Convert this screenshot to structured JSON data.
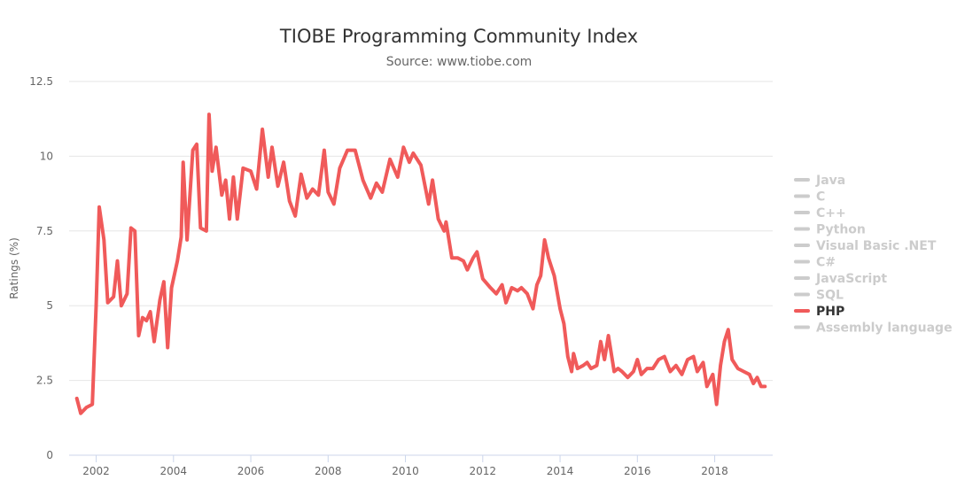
{
  "chart_data": {
    "type": "line",
    "title": "TIOBE Programming Community Index",
    "subtitle": "Source: www.tiobe.com",
    "xlabel": "",
    "ylabel": "Ratings (%)",
    "ylim": [
      0,
      12.5
    ],
    "y_ticks": [
      0,
      2.5,
      5,
      7.5,
      10,
      12.5
    ],
    "y_tick_labels": [
      "0",
      "2.5",
      "5",
      "7.5",
      "10",
      "12.5"
    ],
    "xlim": [
      2001.3,
      2019.5
    ],
    "x_ticks": [
      2002,
      2004,
      2006,
      2008,
      2010,
      2012,
      2014,
      2016,
      2018
    ],
    "x_tick_labels": [
      "2002",
      "2004",
      "2006",
      "2008",
      "2010",
      "2012",
      "2014",
      "2016",
      "2018"
    ],
    "grid": "horizontal",
    "legend_position": "right",
    "legend": [
      {
        "name": "Java",
        "visible": false
      },
      {
        "name": "C",
        "visible": false
      },
      {
        "name": "C++",
        "visible": false
      },
      {
        "name": "Python",
        "visible": false
      },
      {
        "name": "Visual Basic .NET",
        "visible": false
      },
      {
        "name": "C#",
        "visible": false
      },
      {
        "name": "JavaScript",
        "visible": false
      },
      {
        "name": "SQL",
        "visible": false
      },
      {
        "name": "PHP",
        "visible": true
      },
      {
        "name": "Assembly language",
        "visible": false
      }
    ],
    "series": [
      {
        "name": "PHP",
        "color": "#f05a5a",
        "points": [
          [
            2001.5,
            1.9
          ],
          [
            2001.6,
            1.4
          ],
          [
            2001.75,
            1.6
          ],
          [
            2001.9,
            1.7
          ],
          [
            2002.0,
            5.0
          ],
          [
            2002.08,
            8.3
          ],
          [
            2002.2,
            7.2
          ],
          [
            2002.3,
            5.1
          ],
          [
            2002.45,
            5.3
          ],
          [
            2002.55,
            6.5
          ],
          [
            2002.65,
            5.0
          ],
          [
            2002.8,
            5.4
          ],
          [
            2002.9,
            7.6
          ],
          [
            2003.0,
            7.5
          ],
          [
            2003.1,
            4.0
          ],
          [
            2003.2,
            4.6
          ],
          [
            2003.3,
            4.5
          ],
          [
            2003.4,
            4.8
          ],
          [
            2003.5,
            3.8
          ],
          [
            2003.65,
            5.2
          ],
          [
            2003.75,
            5.8
          ],
          [
            2003.85,
            3.6
          ],
          [
            2003.95,
            5.6
          ],
          [
            2004.1,
            6.5
          ],
          [
            2004.2,
            7.3
          ],
          [
            2004.25,
            9.8
          ],
          [
            2004.35,
            7.2
          ],
          [
            2004.5,
            10.2
          ],
          [
            2004.6,
            10.4
          ],
          [
            2004.7,
            7.6
          ],
          [
            2004.85,
            7.5
          ],
          [
            2004.92,
            11.4
          ],
          [
            2005.0,
            9.5
          ],
          [
            2005.1,
            10.3
          ],
          [
            2005.25,
            8.7
          ],
          [
            2005.35,
            9.2
          ],
          [
            2005.45,
            7.9
          ],
          [
            2005.55,
            9.3
          ],
          [
            2005.65,
            7.9
          ],
          [
            2005.8,
            9.6
          ],
          [
            2006.0,
            9.5
          ],
          [
            2006.15,
            8.9
          ],
          [
            2006.3,
            10.9
          ],
          [
            2006.45,
            9.3
          ],
          [
            2006.55,
            10.3
          ],
          [
            2006.7,
            9.0
          ],
          [
            2006.85,
            9.8
          ],
          [
            2007.0,
            8.5
          ],
          [
            2007.15,
            8.0
          ],
          [
            2007.3,
            9.4
          ],
          [
            2007.45,
            8.6
          ],
          [
            2007.6,
            8.9
          ],
          [
            2007.75,
            8.7
          ],
          [
            2007.9,
            10.2
          ],
          [
            2008.0,
            8.8
          ],
          [
            2008.15,
            8.4
          ],
          [
            2008.3,
            9.6
          ],
          [
            2008.5,
            10.2
          ],
          [
            2008.7,
            10.2
          ],
          [
            2008.9,
            9.2
          ],
          [
            2009.1,
            8.6
          ],
          [
            2009.25,
            9.1
          ],
          [
            2009.4,
            8.8
          ],
          [
            2009.6,
            9.9
          ],
          [
            2009.8,
            9.3
          ],
          [
            2009.95,
            10.3
          ],
          [
            2010.1,
            9.8
          ],
          [
            2010.2,
            10.1
          ],
          [
            2010.4,
            9.7
          ],
          [
            2010.6,
            8.4
          ],
          [
            2010.7,
            9.2
          ],
          [
            2010.85,
            7.9
          ],
          [
            2011.0,
            7.5
          ],
          [
            2011.05,
            7.8
          ],
          [
            2011.2,
            6.6
          ],
          [
            2011.35,
            6.6
          ],
          [
            2011.5,
            6.5
          ],
          [
            2011.6,
            6.2
          ],
          [
            2011.75,
            6.6
          ],
          [
            2011.85,
            6.8
          ],
          [
            2012.0,
            5.9
          ],
          [
            2012.2,
            5.6
          ],
          [
            2012.35,
            5.4
          ],
          [
            2012.5,
            5.7
          ],
          [
            2012.6,
            5.1
          ],
          [
            2012.75,
            5.6
          ],
          [
            2012.9,
            5.5
          ],
          [
            2013.0,
            5.6
          ],
          [
            2013.15,
            5.4
          ],
          [
            2013.3,
            4.9
          ],
          [
            2013.4,
            5.7
          ],
          [
            2013.5,
            6.0
          ],
          [
            2013.6,
            7.2
          ],
          [
            2013.7,
            6.6
          ],
          [
            2013.85,
            6.0
          ],
          [
            2014.0,
            4.9
          ],
          [
            2014.1,
            4.4
          ],
          [
            2014.2,
            3.3
          ],
          [
            2014.3,
            2.8
          ],
          [
            2014.35,
            3.4
          ],
          [
            2014.45,
            2.9
          ],
          [
            2014.6,
            3.0
          ],
          [
            2014.7,
            3.1
          ],
          [
            2014.8,
            2.9
          ],
          [
            2014.95,
            3.0
          ],
          [
            2015.05,
            3.8
          ],
          [
            2015.15,
            3.2
          ],
          [
            2015.25,
            4.0
          ],
          [
            2015.4,
            2.8
          ],
          [
            2015.5,
            2.9
          ],
          [
            2015.6,
            2.8
          ],
          [
            2015.75,
            2.6
          ],
          [
            2015.9,
            2.8
          ],
          [
            2016.0,
            3.2
          ],
          [
            2016.1,
            2.7
          ],
          [
            2016.25,
            2.9
          ],
          [
            2016.4,
            2.9
          ],
          [
            2016.55,
            3.2
          ],
          [
            2016.7,
            3.3
          ],
          [
            2016.85,
            2.8
          ],
          [
            2017.0,
            3.0
          ],
          [
            2017.15,
            2.7
          ],
          [
            2017.3,
            3.2
          ],
          [
            2017.45,
            3.3
          ],
          [
            2017.55,
            2.8
          ],
          [
            2017.7,
            3.1
          ],
          [
            2017.8,
            2.3
          ],
          [
            2017.95,
            2.7
          ],
          [
            2018.05,
            1.7
          ],
          [
            2018.15,
            3.0
          ],
          [
            2018.25,
            3.8
          ],
          [
            2018.35,
            4.2
          ],
          [
            2018.45,
            3.2
          ],
          [
            2018.6,
            2.9
          ],
          [
            2018.75,
            2.8
          ],
          [
            2018.9,
            2.7
          ],
          [
            2019.0,
            2.4
          ],
          [
            2019.1,
            2.6
          ],
          [
            2019.2,
            2.3
          ],
          [
            2019.3,
            2.3
          ]
        ]
      }
    ]
  }
}
